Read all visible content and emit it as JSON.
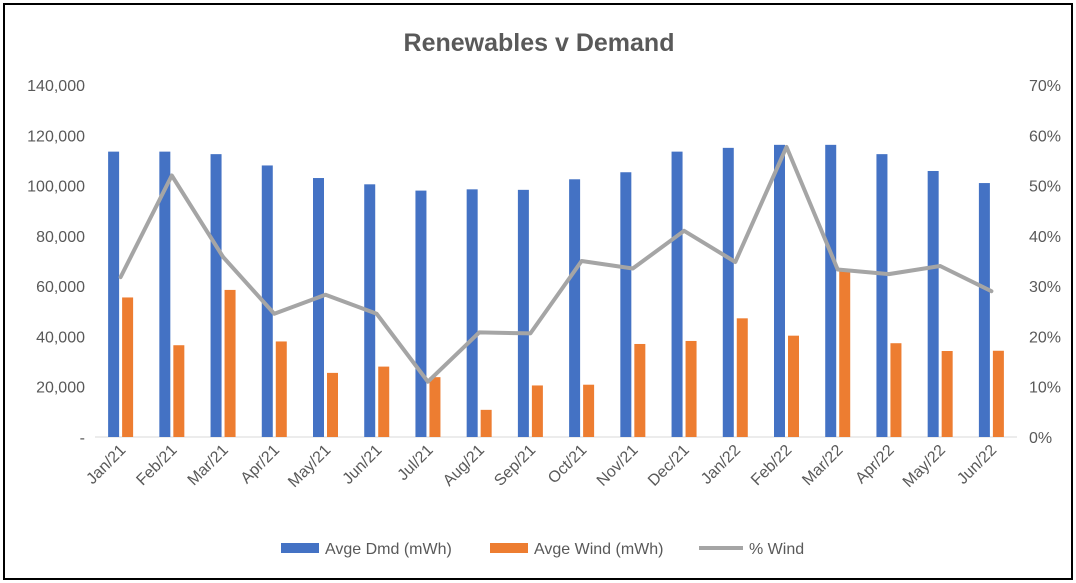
{
  "chart_data": {
    "type": "bar",
    "title": "Renewables v Demand",
    "categories": [
      "Jan/21",
      "Feb/21",
      "Mar/21",
      "Apr/21",
      "May/21",
      "Jun/21",
      "Jul/21",
      "Aug/21",
      "Sep/21",
      "Oct/21",
      "Nov/21",
      "Dec/21",
      "Jan/22",
      "Feb/22",
      "Mar/22",
      "Apr/22",
      "May/22",
      "Jun/22"
    ],
    "series": [
      {
        "name": "Avge Dmd (mWh)",
        "type": "bar",
        "axis": "left",
        "color": "#4472C4",
        "values": [
          113500,
          113500,
          112500,
          108000,
          103000,
          100500,
          98000,
          98500,
          98300,
          102500,
          105300,
          113500,
          115000,
          116200,
          116200,
          112500,
          105800,
          101000
        ]
      },
      {
        "name": "Avge Wind (mWh)",
        "type": "bar",
        "axis": "left",
        "color": "#ED7D31",
        "values": [
          55500,
          36500,
          58500,
          38000,
          25500,
          28000,
          23800,
          10800,
          20500,
          20800,
          37000,
          38200,
          47200,
          40300,
          66000,
          37300,
          34200,
          34300
        ]
      },
      {
        "name": "% Wind",
        "type": "line",
        "axis": "right",
        "color": "#A5A5A5",
        "values": [
          0.318,
          0.52,
          0.358,
          0.245,
          0.283,
          0.245,
          0.11,
          0.208,
          0.206,
          0.35,
          0.335,
          0.41,
          0.348,
          0.577,
          0.333,
          0.324,
          0.34,
          0.29
        ]
      }
    ],
    "left_axis": {
      "min": 0,
      "max": 140000,
      "step": 20000,
      "tick_labels": [
        "-",
        "20,000",
        "40,000",
        "60,000",
        "80,000",
        "100,000",
        "120,000",
        "140,000"
      ]
    },
    "right_axis": {
      "min": 0,
      "max": 0.7,
      "step": 0.1,
      "tick_labels": [
        "0%",
        "10%",
        "20%",
        "30%",
        "40%",
        "50%",
        "60%",
        "70%"
      ]
    },
    "grid": false,
    "legend_position": "bottom"
  }
}
